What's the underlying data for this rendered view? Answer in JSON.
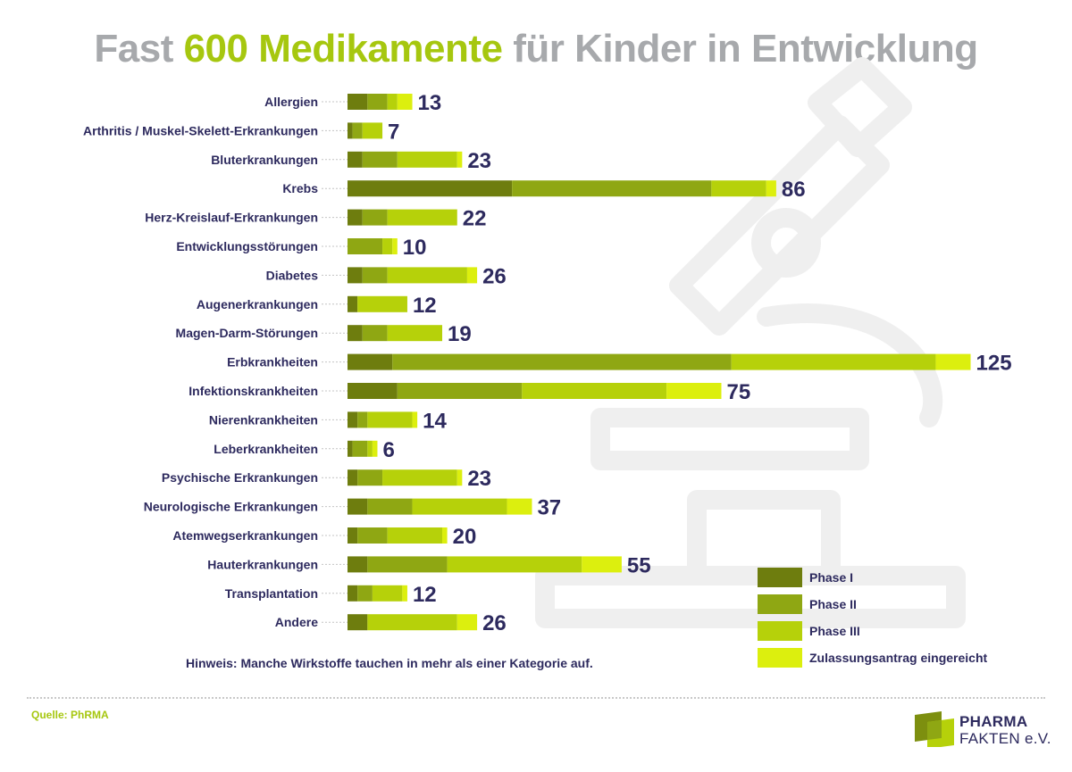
{
  "title": {
    "part1": "Fast ",
    "part2": "600 Medikamente",
    "part3": " für Kinder in Entwicklung"
  },
  "note": "Hinweis: Manche Wirkstoffe tauchen in mehr als einer Kategorie auf.",
  "source": "Quelle: PhRMA",
  "logo": {
    "line1": "PHARMA",
    "line2": "FAKTEN e.V."
  },
  "colors": {
    "phase1": "#6e7d0e",
    "phase2": "#8fa713",
    "phase3": "#b6d10a",
    "submitted": "#dcef0e",
    "title_gray": "#a7a9ac",
    "title_green": "#a6c70f",
    "text_navy": "#2d2a5e",
    "watermark": "#efefef"
  },
  "chart_data": {
    "type": "bar",
    "orientation": "horizontal",
    "stacked": true,
    "categories": [
      "Allergien",
      "Arthritis / Muskel-Skelett-Erkrankungen",
      "Bluterkrankungen",
      "Krebs",
      "Herz-Kreislauf-Erkrankungen",
      "Entwicklungsstörungen",
      "Diabetes",
      "Augenerkrankungen",
      "Magen-Darm-Störungen",
      "Erbkrankheiten",
      "Infektionskrankheiten",
      "Nierenkrankheiten",
      "Leberkrankheiten",
      "Psychische Erkrankungen",
      "Neurologische Erkrankungen",
      "Atemwegserkrankungen",
      "Hauterkrankungen",
      "Transplantation",
      "Andere"
    ],
    "totals": [
      13,
      7,
      23,
      86,
      22,
      10,
      26,
      12,
      19,
      125,
      75,
      14,
      6,
      23,
      37,
      20,
      55,
      12,
      26
    ],
    "series": [
      {
        "name": "Phase I",
        "values": [
          4,
          1,
          3,
          33,
          3,
          0,
          3,
          2,
          3,
          9,
          10,
          2,
          1,
          2,
          4,
          2,
          4,
          2,
          4
        ]
      },
      {
        "name": "Phase II",
        "values": [
          4,
          2,
          7,
          40,
          5,
          7,
          5,
          0,
          5,
          68,
          25,
          2,
          3,
          5,
          9,
          6,
          16,
          3,
          0
        ]
      },
      {
        "name": "Phase III",
        "values": [
          2,
          4,
          12,
          11,
          14,
          2,
          16,
          10,
          11,
          41,
          29,
          9,
          1,
          15,
          19,
          11,
          27,
          6,
          18
        ]
      },
      {
        "name": "Zulassungsantrag eingereicht",
        "values": [
          3,
          0,
          1,
          2,
          0,
          1,
          2,
          0,
          0,
          7,
          11,
          1,
          1,
          1,
          5,
          1,
          8,
          1,
          4
        ]
      }
    ],
    "legend_position": "bottom-right",
    "grid": false
  }
}
